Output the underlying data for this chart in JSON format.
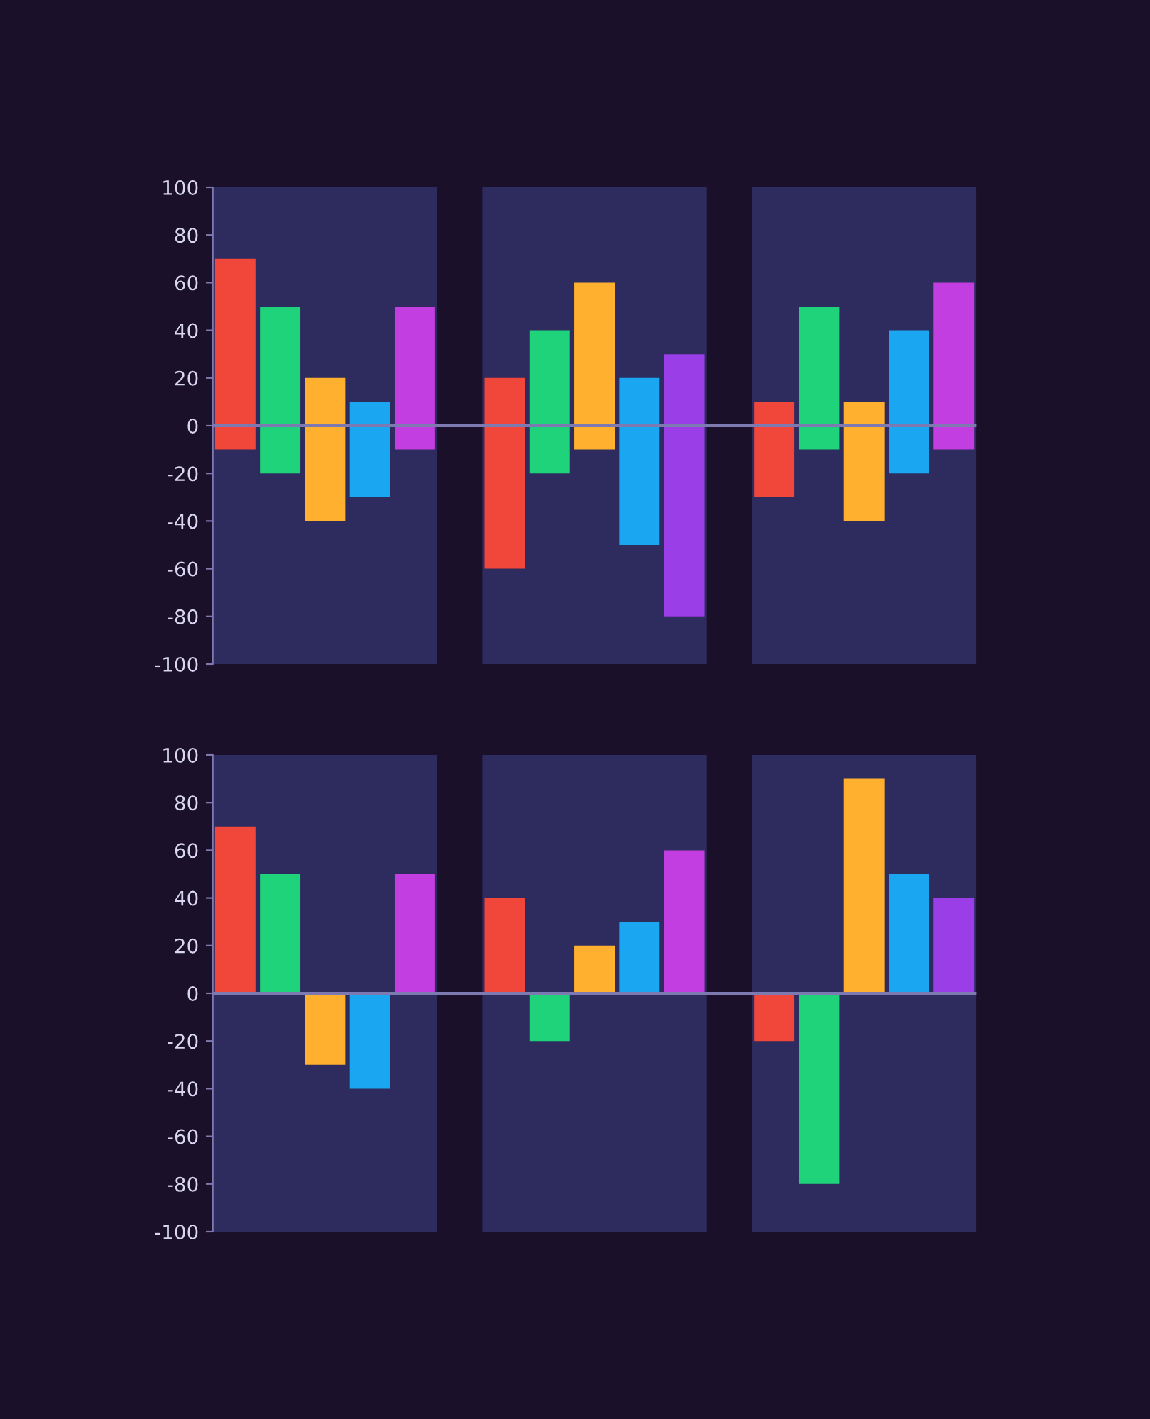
{
  "chart_data": [
    {
      "type": "bar",
      "categories": [
        null,
        null,
        null,
        null,
        null,
        null,
        null,
        null,
        null,
        null,
        null,
        null,
        null,
        null,
        null,
        null,
        null
      ],
      "values": [
        80,
        70,
        60,
        40,
        60,
        null,
        80,
        60,
        70,
        70,
        110,
        null,
        40,
        60,
        50,
        60,
        70
      ],
      "base": [
        -10,
        -20,
        -40,
        -30,
        -10,
        null,
        -60,
        -20,
        -10,
        -50,
        -80,
        null,
        -30,
        -10,
        -40,
        -20,
        -10
      ],
      "colors": [
        "#f0473a",
        "#1fd37a",
        "#ffb02e",
        "#1aa6f0",
        "#c23ee0",
        "#000000",
        "#f0473a",
        "#1fd37a",
        "#ffb02e",
        "#1aa6f0",
        "#9a3ee8",
        "#000000",
        "#f0473a",
        "#1fd37a",
        "#ffb02e",
        "#1aa6f0",
        "#c23ee0"
      ],
      "ylim": [
        -100,
        100
      ],
      "yticks": [
        -100,
        -80,
        -60,
        -40,
        -20,
        0,
        20,
        40,
        60,
        80,
        100
      ],
      "tick_labels": "y",
      "grid": false,
      "ref_lines": [
        {
          "axis": "y",
          "value": 0,
          "color": "#7c7ab0"
        }
      ]
    },
    {
      "type": "bar",
      "categories": [
        null,
        null,
        null,
        null,
        null,
        null,
        null,
        null,
        null,
        null,
        null,
        null,
        null,
        null,
        null,
        null,
        null
      ],
      "values": [
        70,
        50,
        -30,
        -40,
        50,
        null,
        40,
        -20,
        20,
        30,
        60,
        null,
        -20,
        -80,
        90,
        50,
        40
      ],
      "colors": [
        "#f0473a",
        "#1fd37a",
        "#ffb02e",
        "#1aa6f0",
        "#c23ee0",
        "#000000",
        "#f0473a",
        "#1fd37a",
        "#ffb02e",
        "#1aa6f0",
        "#c23ee0",
        "#000000",
        "#f0473a",
        "#1fd37a",
        "#ffb02e",
        "#1aa6f0",
        "#9a3ee8"
      ],
      "ylim": [
        -100,
        100
      ],
      "yticks": [
        -100,
        -80,
        -60,
        -40,
        -20,
        0,
        20,
        40,
        60,
        80,
        100
      ],
      "tick_labels": "y",
      "grid": false,
      "ref_lines": [
        {
          "axis": "y",
          "value": 0,
          "color": "#7c7ab0"
        }
      ]
    }
  ]
}
